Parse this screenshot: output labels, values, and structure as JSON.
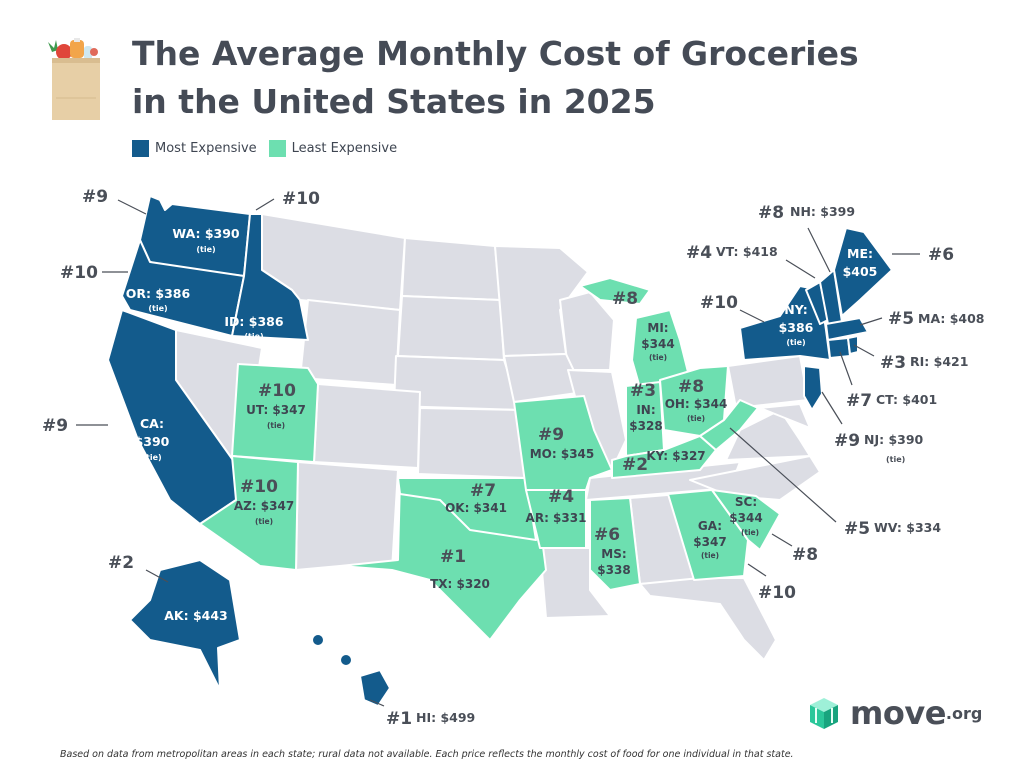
{
  "title_line1": "The Average Monthly Cost of Groceries",
  "title_line2": "in the United States in 2025",
  "legend": [
    {
      "label": "Most Expensive",
      "color": "#135b8c"
    },
    {
      "label": "Least Expensive",
      "color": "#6ddfb0"
    }
  ],
  "colors": {
    "most": "#135b8c",
    "least": "#6ddfb0",
    "neutral": "#dcdde4",
    "border": "#ffffff"
  },
  "states": {
    "WA": {
      "rank": "#9",
      "label": "WA: $390",
      "tie": "(tie)",
      "group": "most"
    },
    "OR": {
      "rank": "#10",
      "label": "OR: $386",
      "tie": "(tie)",
      "group": "most"
    },
    "ID": {
      "rank": "#10",
      "label": "ID: $386",
      "tie": "(tie)",
      "group": "most"
    },
    "CA": {
      "rank": "#9",
      "label": "CA:",
      "value": "$390",
      "tie": "(tie)",
      "group": "most"
    },
    "AK": {
      "rank": "#2",
      "label": "AK: $443",
      "group": "most"
    },
    "HI": {
      "rank": "#1",
      "label": "HI: $499",
      "group": "most"
    },
    "NY": {
      "rank": "#10",
      "label": "NY:",
      "value": "$386",
      "tie": "(tie)",
      "group": "most"
    },
    "NH": {
      "rank": "#8",
      "label": "NH: $399",
      "group": "most"
    },
    "VT": {
      "rank": "#4",
      "label": "VT: $418",
      "group": "most"
    },
    "ME": {
      "rank": "#6",
      "label": "ME:",
      "value": "$405",
      "group": "most"
    },
    "MA": {
      "rank": "#5",
      "label": "MA: $408",
      "group": "most"
    },
    "RI": {
      "rank": "#3",
      "label": "RI: $421",
      "group": "most"
    },
    "CT": {
      "rank": "#7",
      "label": "CT: $401",
      "group": "most"
    },
    "NJ": {
      "rank": "#9",
      "label": "NJ: $390",
      "tie": "(tie)",
      "group": "most"
    },
    "UT": {
      "rank": "#10",
      "label": "UT: $347",
      "tie": "(tie)",
      "group": "least"
    },
    "AZ": {
      "rank": "#10",
      "label": "AZ: $347",
      "tie": "(tie)",
      "group": "least"
    },
    "TX": {
      "rank": "#1",
      "label": "TX: $320",
      "group": "least"
    },
    "OK": {
      "rank": "#7",
      "label": "OK: $341",
      "group": "least"
    },
    "MO": {
      "rank": "#9",
      "label": "MO: $345",
      "group": "least"
    },
    "AR": {
      "rank": "#4",
      "label": "AR: $331",
      "group": "least"
    },
    "MS": {
      "rank": "#6",
      "label": "MS:",
      "value": "$338",
      "group": "least"
    },
    "MI": {
      "rank": "#8",
      "label": "MI:",
      "value": "$344",
      "tie": "(tie)",
      "group": "least"
    },
    "IN": {
      "rank": "#3",
      "label": "IN:",
      "value": "$328",
      "group": "least"
    },
    "OH": {
      "rank": "#8",
      "label": "OH: $344",
      "tie": "(tie)",
      "group": "least"
    },
    "KY": {
      "rank": "#2",
      "label": "KY: $327",
      "group": "least"
    },
    "WV": {
      "rank": "#5",
      "label": "WV: $334",
      "group": "least"
    },
    "GA": {
      "rank": "#10",
      "label": "GA:",
      "value": "$347",
      "tie": "(tie)",
      "group": "least"
    },
    "SC": {
      "rank": "#8",
      "label": "SC:",
      "value": "$344",
      "tie": "(tie)",
      "group": "least"
    }
  },
  "footer": "Based on data from metropolitan areas in each state; rural data not available. Each price reflects the monthly cost of food for one individual in that state.",
  "logo": {
    "word": "move",
    "tld": ".org"
  }
}
